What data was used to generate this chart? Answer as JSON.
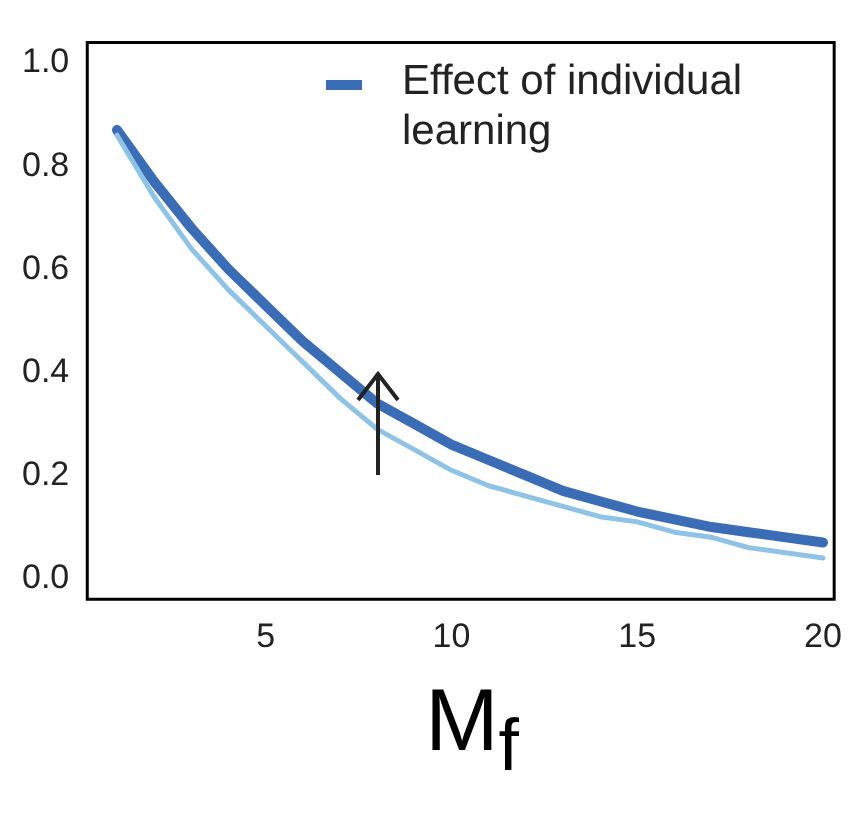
{
  "chart_data": {
    "type": "line",
    "xlabel": "M$_{f}$",
    "x": [
      1,
      2,
      3,
      4,
      5,
      6,
      7,
      8,
      9,
      10,
      11,
      12,
      13,
      14,
      15,
      16,
      17,
      18,
      19,
      20
    ],
    "series": [
      {
        "name": "Effect of individual learning",
        "color": "#3a6db5",
        "values": [
          0.87,
          0.77,
          0.68,
          0.6,
          0.53,
          0.46,
          0.4,
          0.34,
          0.3,
          0.26,
          0.23,
          0.2,
          0.17,
          0.15,
          0.13,
          0.115,
          0.1,
          0.09,
          0.08,
          0.07
        ]
      },
      {
        "color": "#8ec3e6",
        "values": [
          0.86,
          0.74,
          0.64,
          0.56,
          0.49,
          0.42,
          0.35,
          0.29,
          0.25,
          0.21,
          0.18,
          0.16,
          0.14,
          0.12,
          0.11,
          0.09,
          0.08,
          0.06,
          0.05,
          0.04
        ]
      }
    ],
    "xlim": [
      0.2,
      20.3
    ],
    "xticks": [
      5,
      10,
      15,
      20
    ],
    "ylim": [
      -0.04,
      1.04
    ],
    "yticks": [
      {
        "value": 0,
        "label": "0.0"
      },
      {
        "value": 0.2,
        "label": "0.2"
      },
      {
        "value": 0.4,
        "label": "0.4"
      },
      {
        "value": 0.6,
        "label": "0.6"
      },
      {
        "value": 0.8,
        "label": "0.8"
      },
      {
        "value": 1,
        "label": "1.0"
      }
    ],
    "grid": false,
    "legend": "top right",
    "marker": "none",
    "line_style": "solid"
  }
}
